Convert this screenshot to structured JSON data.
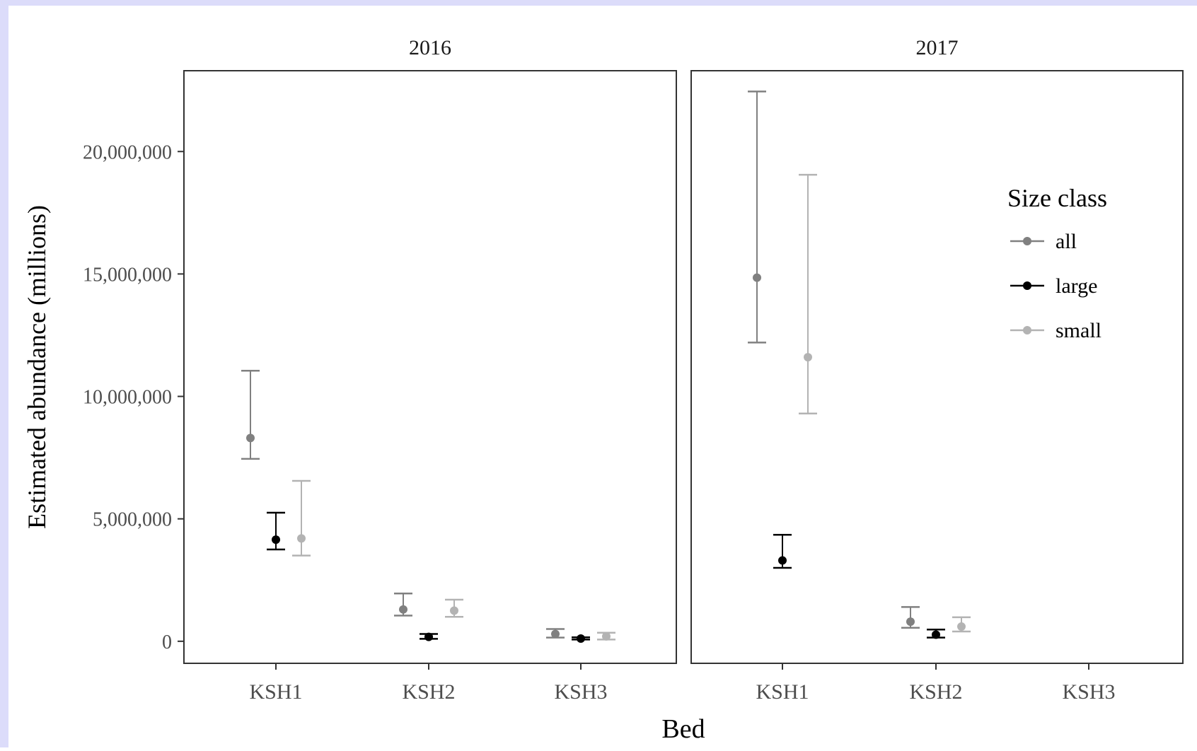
{
  "chart_data": {
    "type": "scatter",
    "subtype": "point-errorbar-facets",
    "facets": [
      "2016",
      "2017"
    ],
    "categories": [
      "KSH1",
      "KSH2",
      "KSH3"
    ],
    "xlabel": "Bed",
    "ylabel": "Estimated abundance (millions)",
    "ylim": [
      -900000,
      23300000
    ],
    "yticks": [
      0,
      5000000,
      10000000,
      15000000,
      20000000
    ],
    "ytick_labels": [
      "0",
      "5,000,000",
      "10,000,000",
      "15,000,000",
      "20,000,000"
    ],
    "grid": false,
    "legend": {
      "title": "Size class",
      "placement": "top-right-inside-facet-2017"
    },
    "series": [
      {
        "name": "all",
        "color": "#808080",
        "points": [
          {
            "facet": "2016",
            "x": "KSH1",
            "y": 8300000,
            "low": 7450000,
            "high": 11050000
          },
          {
            "facet": "2016",
            "x": "KSH2",
            "y": 1300000,
            "low": 1050000,
            "high": 1950000
          },
          {
            "facet": "2016",
            "x": "KSH3",
            "y": 300000,
            "low": 150000,
            "high": 500000
          },
          {
            "facet": "2017",
            "x": "KSH1",
            "y": 14850000,
            "low": 12200000,
            "high": 22450000
          },
          {
            "facet": "2017",
            "x": "KSH2",
            "y": 800000,
            "low": 550000,
            "high": 1400000
          }
        ]
      },
      {
        "name": "large",
        "color": "#000000",
        "points": [
          {
            "facet": "2016",
            "x": "KSH1",
            "y": 4150000,
            "low": 3750000,
            "high": 5250000
          },
          {
            "facet": "2016",
            "x": "KSH2",
            "y": 180000,
            "low": 100000,
            "high": 300000
          },
          {
            "facet": "2016",
            "x": "KSH3",
            "y": 110000,
            "low": 70000,
            "high": 160000
          },
          {
            "facet": "2017",
            "x": "KSH1",
            "y": 3300000,
            "low": 3000000,
            "high": 4350000
          },
          {
            "facet": "2017",
            "x": "KSH2",
            "y": 270000,
            "low": 150000,
            "high": 480000
          }
        ]
      },
      {
        "name": "small",
        "color": "#b3b3b3",
        "points": [
          {
            "facet": "2016",
            "x": "KSH1",
            "y": 4200000,
            "low": 3500000,
            "high": 6550000
          },
          {
            "facet": "2016",
            "x": "KSH2",
            "y": 1250000,
            "low": 1000000,
            "high": 1700000
          },
          {
            "facet": "2016",
            "x": "KSH3",
            "y": 200000,
            "low": 70000,
            "high": 350000
          },
          {
            "facet": "2017",
            "x": "KSH1",
            "y": 11600000,
            "low": 9300000,
            "high": 19050000
          },
          {
            "facet": "2017",
            "x": "KSH2",
            "y": 600000,
            "low": 400000,
            "high": 980000
          }
        ]
      }
    ]
  },
  "colors": {
    "window_frame": "#dcdcfa",
    "panel_border": "#333333",
    "axis_text": "#4d4d4d"
  }
}
